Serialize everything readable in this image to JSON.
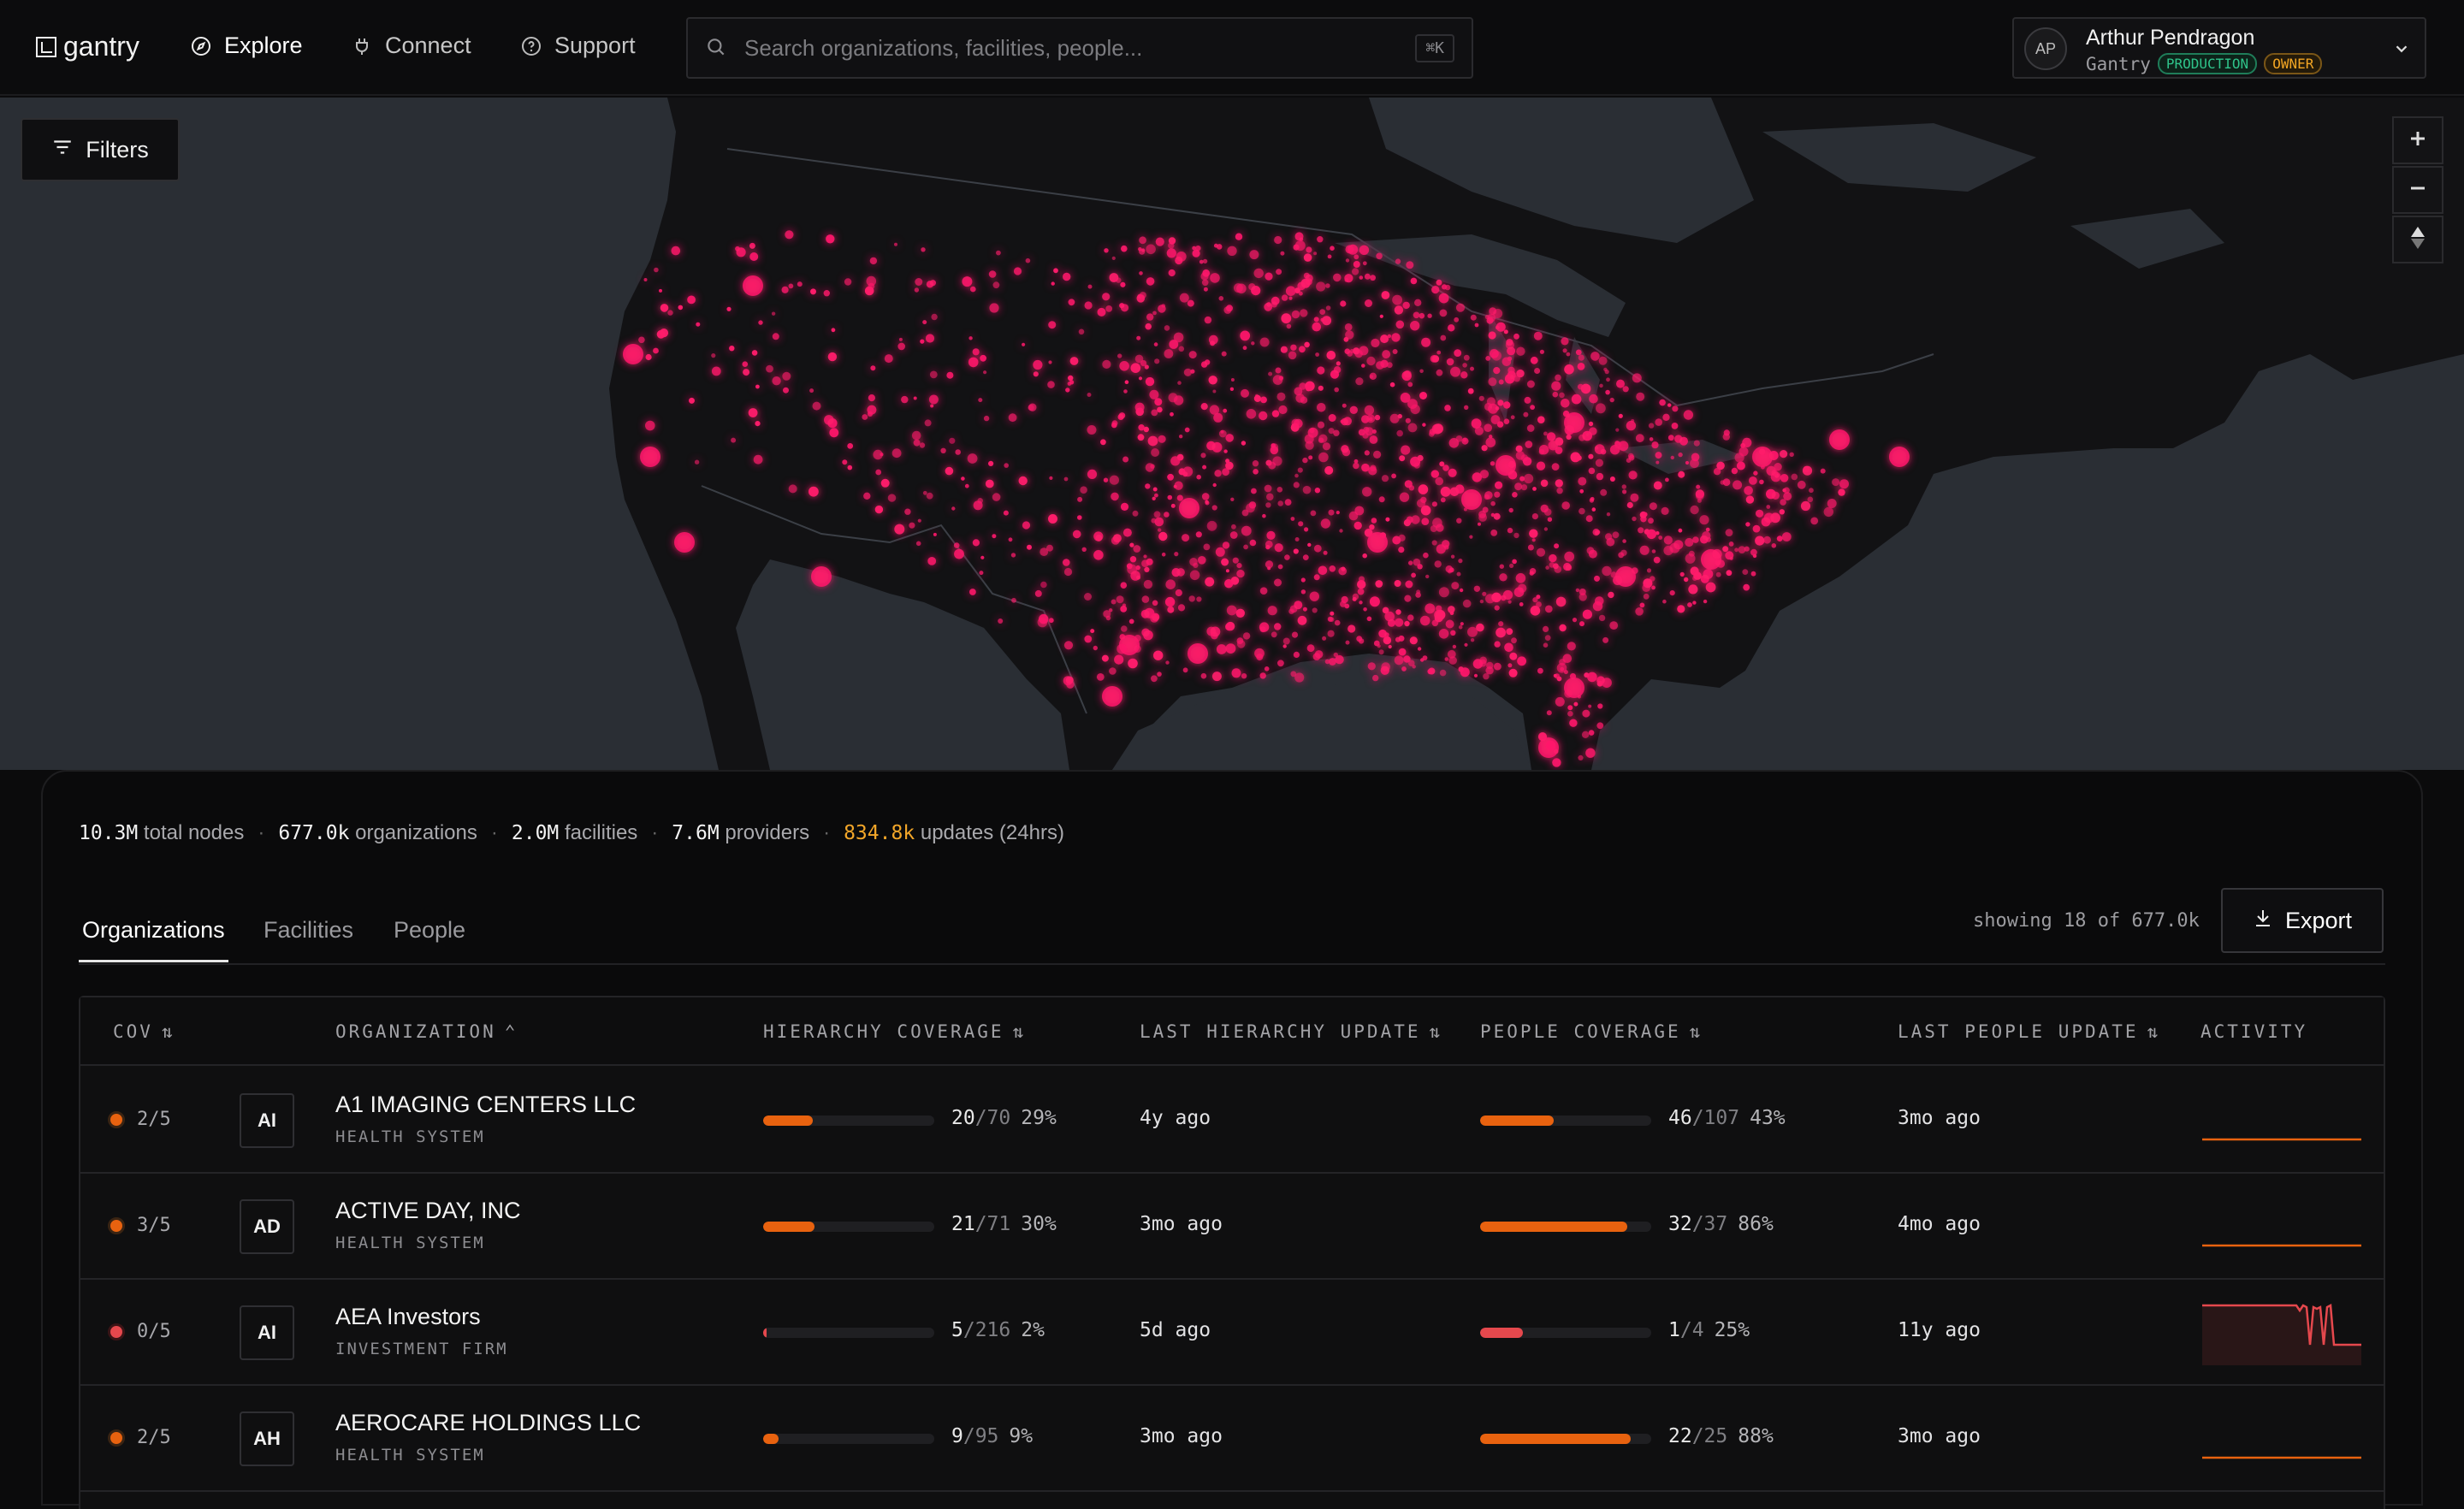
{
  "brand": {
    "name": "gantry"
  },
  "nav": [
    {
      "label": "Explore",
      "icon": "compass-icon"
    },
    {
      "label": "Connect",
      "icon": "plug-icon"
    },
    {
      "label": "Support",
      "icon": "help-circle-icon"
    }
  ],
  "search": {
    "placeholder": "Search organizations, facilities, people...",
    "shortcut": "⌘K"
  },
  "account": {
    "initials": "AP",
    "name": "Arthur Pendragon",
    "org": "Gantry",
    "env_badge": "PRODUCTION",
    "role_badge": "OWNER"
  },
  "map": {
    "filters_label": "Filters",
    "heat_color": "#ff1a6b"
  },
  "stats": [
    {
      "value": "10.3M",
      "label": "total nodes"
    },
    {
      "value": "677.0k",
      "label": "organizations"
    },
    {
      "value": "2.0M",
      "label": "facilities"
    },
    {
      "value": "7.6M",
      "label": "providers"
    },
    {
      "value": "834.8k",
      "label": "updates (24hrs)",
      "highlight": true
    }
  ],
  "tabs": [
    "Organizations",
    "Facilities",
    "People"
  ],
  "showing": "showing 18 of 677.0k",
  "export_label": "Export",
  "columns": [
    "COV",
    "ORGANIZATION",
    "HIERARCHY COVERAGE",
    "LAST HIERARCHY UPDATE",
    "PEOPLE COVERAGE",
    "LAST PEOPLE UPDATE",
    "ACTIVITY"
  ],
  "colors": {
    "accent_orange": "#e8620f",
    "alert_red": "#e5484d"
  },
  "rows": [
    {
      "cov": "2/5",
      "status": "orange",
      "abbr": "AI",
      "name": "A1 IMAGING CENTERS LLC",
      "type": "HEALTH SYSTEM",
      "h_num": "20",
      "h_den": "/70",
      "h_pct": "29%",
      "h_level": 0.29,
      "h_update": "4y ago",
      "p_num": "46",
      "p_den": "/107",
      "p_pct": "43%",
      "p_level": 0.43,
      "p_update": "3mo ago",
      "activity": "flat"
    },
    {
      "cov": "3/5",
      "status": "orange",
      "abbr": "AD",
      "name": "ACTIVE DAY, INC",
      "type": "HEALTH SYSTEM",
      "h_num": "21",
      "h_den": "/71",
      "h_pct": "30%",
      "h_level": 0.3,
      "h_update": "3mo ago",
      "p_num": "32",
      "p_den": "/37",
      "p_pct": "86%",
      "p_level": 0.86,
      "p_update": "4mo ago",
      "activity": "flat"
    },
    {
      "cov": "0/5",
      "status": "red",
      "abbr": "AI",
      "name": "AEA Investors",
      "type": "INVESTMENT FIRM",
      "h_num": "5",
      "h_den": "/216",
      "h_pct": "2%",
      "h_level": 0.02,
      "h_update": "5d ago",
      "p_num": "1",
      "p_den": "/4",
      "p_pct": "25%",
      "p_level": 0.25,
      "p_update": "11y ago",
      "activity": "spiky"
    },
    {
      "cov": "2/5",
      "status": "orange",
      "abbr": "AH",
      "name": "AEROCARE HOLDINGS LLC",
      "type": "HEALTH SYSTEM",
      "h_num": "9",
      "h_den": "/95",
      "h_pct": "9%",
      "h_level": 0.09,
      "h_update": "3mo ago",
      "p_num": "22",
      "p_den": "/25",
      "p_pct": "88%",
      "p_level": 0.88,
      "p_update": "3mo ago",
      "activity": "flat"
    }
  ]
}
